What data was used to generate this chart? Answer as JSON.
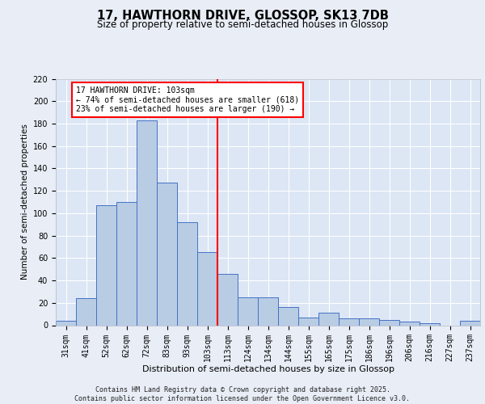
{
  "title1": "17, HAWTHORN DRIVE, GLOSSOP, SK13 7DB",
  "title2": "Size of property relative to semi-detached houses in Glossop",
  "xlabel": "Distribution of semi-detached houses by size in Glossop",
  "ylabel": "Number of semi-detached properties",
  "categories": [
    "31sqm",
    "41sqm",
    "52sqm",
    "62sqm",
    "72sqm",
    "83sqm",
    "93sqm",
    "103sqm",
    "113sqm",
    "124sqm",
    "134sqm",
    "144sqm",
    "155sqm",
    "165sqm",
    "175sqm",
    "186sqm",
    "196sqm",
    "206sqm",
    "216sqm",
    "227sqm",
    "237sqm"
  ],
  "values": [
    4,
    24,
    107,
    110,
    183,
    127,
    92,
    65,
    46,
    25,
    25,
    16,
    7,
    11,
    6,
    6,
    5,
    3,
    2,
    0,
    4
  ],
  "bar_color": "#b8cce4",
  "bar_edge_color": "#4472c4",
  "annotation_line1": "17 HAWTHORN DRIVE: 103sqm",
  "annotation_line2": "← 74% of semi-detached houses are smaller (618)",
  "annotation_line3": "23% of semi-detached houses are larger (190) →",
  "ylim": [
    0,
    220
  ],
  "yticks": [
    0,
    20,
    40,
    60,
    80,
    100,
    120,
    140,
    160,
    180,
    200,
    220
  ],
  "background_color": "#e8edf6",
  "plot_background": "#dce6f5",
  "footer1": "Contains HM Land Registry data © Crown copyright and database right 2025.",
  "footer2": "Contains public sector information licensed under the Open Government Licence v3.0.",
  "title1_fontsize": 10.5,
  "title2_fontsize": 8.5,
  "ylabel_fontsize": 7.5,
  "xlabel_fontsize": 8,
  "tick_fontsize": 7,
  "annot_fontsize": 7,
  "footer_fontsize": 6
}
